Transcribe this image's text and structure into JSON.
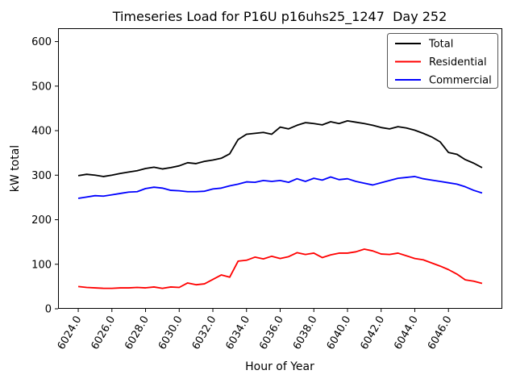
{
  "chart_data": {
    "type": "line",
    "title": "Timeseries Load for P16U p16uhs25_1247  Day 252",
    "xlabel": "Hour of Year",
    "ylabel": "kW total",
    "grid": false,
    "legend_position": "upper right",
    "xlim": [
      6022.8,
      6049.2
    ],
    "ylim": [
      0,
      630
    ],
    "x_tick_labels": [
      "6024.0",
      "6026.0",
      "6028.0",
      "6030.0",
      "6032.0",
      "6034.0",
      "6036.0",
      "6038.0",
      "6040.0",
      "6042.0",
      "6044.0",
      "6046.0"
    ],
    "x_tick_values": [
      6024,
      6026,
      6028,
      6030,
      6032,
      6034,
      6036,
      6038,
      6040,
      6042,
      6044,
      6046
    ],
    "y_tick_labels": [
      "0",
      "100",
      "200",
      "300",
      "400",
      "500",
      "600"
    ],
    "y_tick_values": [
      0,
      100,
      200,
      300,
      400,
      500,
      600
    ],
    "x": [
      6024.0,
      6024.5,
      6025.0,
      6025.5,
      6026.0,
      6026.5,
      6027.0,
      6027.5,
      6028.0,
      6028.5,
      6029.0,
      6029.5,
      6030.0,
      6030.5,
      6031.0,
      6031.5,
      6032.0,
      6032.5,
      6033.0,
      6033.5,
      6034.0,
      6034.5,
      6035.0,
      6035.5,
      6036.0,
      6036.5,
      6037.0,
      6037.5,
      6038.0,
      6038.5,
      6039.0,
      6039.5,
      6040.0,
      6040.5,
      6041.0,
      6041.5,
      6042.0,
      6042.5,
      6043.0,
      6043.5,
      6044.0,
      6044.5,
      6045.0,
      6045.5,
      6046.0,
      6046.5,
      6047.0,
      6047.5,
      6048.0
    ],
    "series": [
      {
        "name": "Total",
        "color": "#000000",
        "values": [
          299,
          302,
          300,
          297,
          300,
          304,
          307,
          310,
          315,
          318,
          314,
          317,
          321,
          328,
          326,
          331,
          334,
          338,
          348,
          380,
          392,
          394,
          396,
          392,
          408,
          404,
          412,
          418,
          416,
          413,
          420,
          416,
          422,
          419,
          416,
          412,
          407,
          404,
          409,
          406,
          401,
          394,
          386,
          375,
          351,
          347,
          335,
          327,
          317
        ]
      },
      {
        "name": "Residential",
        "color": "#ff0000",
        "values": [
          50,
          48,
          47,
          46,
          46,
          47,
          47,
          48,
          47,
          49,
          46,
          49,
          48,
          58,
          54,
          56,
          66,
          76,
          71,
          107,
          109,
          116,
          112,
          118,
          113,
          117,
          126,
          122,
          125,
          115,
          121,
          125,
          125,
          128,
          134,
          130,
          123,
          122,
          125,
          119,
          113,
          110,
          103,
          96,
          88,
          78,
          65,
          62,
          57
        ]
      },
      {
        "name": "Commercial",
        "color": "#0000ff",
        "values": [
          248,
          251,
          254,
          253,
          256,
          259,
          262,
          263,
          270,
          273,
          271,
          266,
          265,
          263,
          263,
          264,
          269,
          271,
          276,
          280,
          285,
          284,
          288,
          286,
          288,
          284,
          292,
          286,
          293,
          289,
          296,
          290,
          292,
          286,
          282,
          278,
          283,
          288,
          293,
          295,
          297,
          292,
          289,
          286,
          283,
          280,
          274,
          266,
          260
        ]
      }
    ]
  }
}
